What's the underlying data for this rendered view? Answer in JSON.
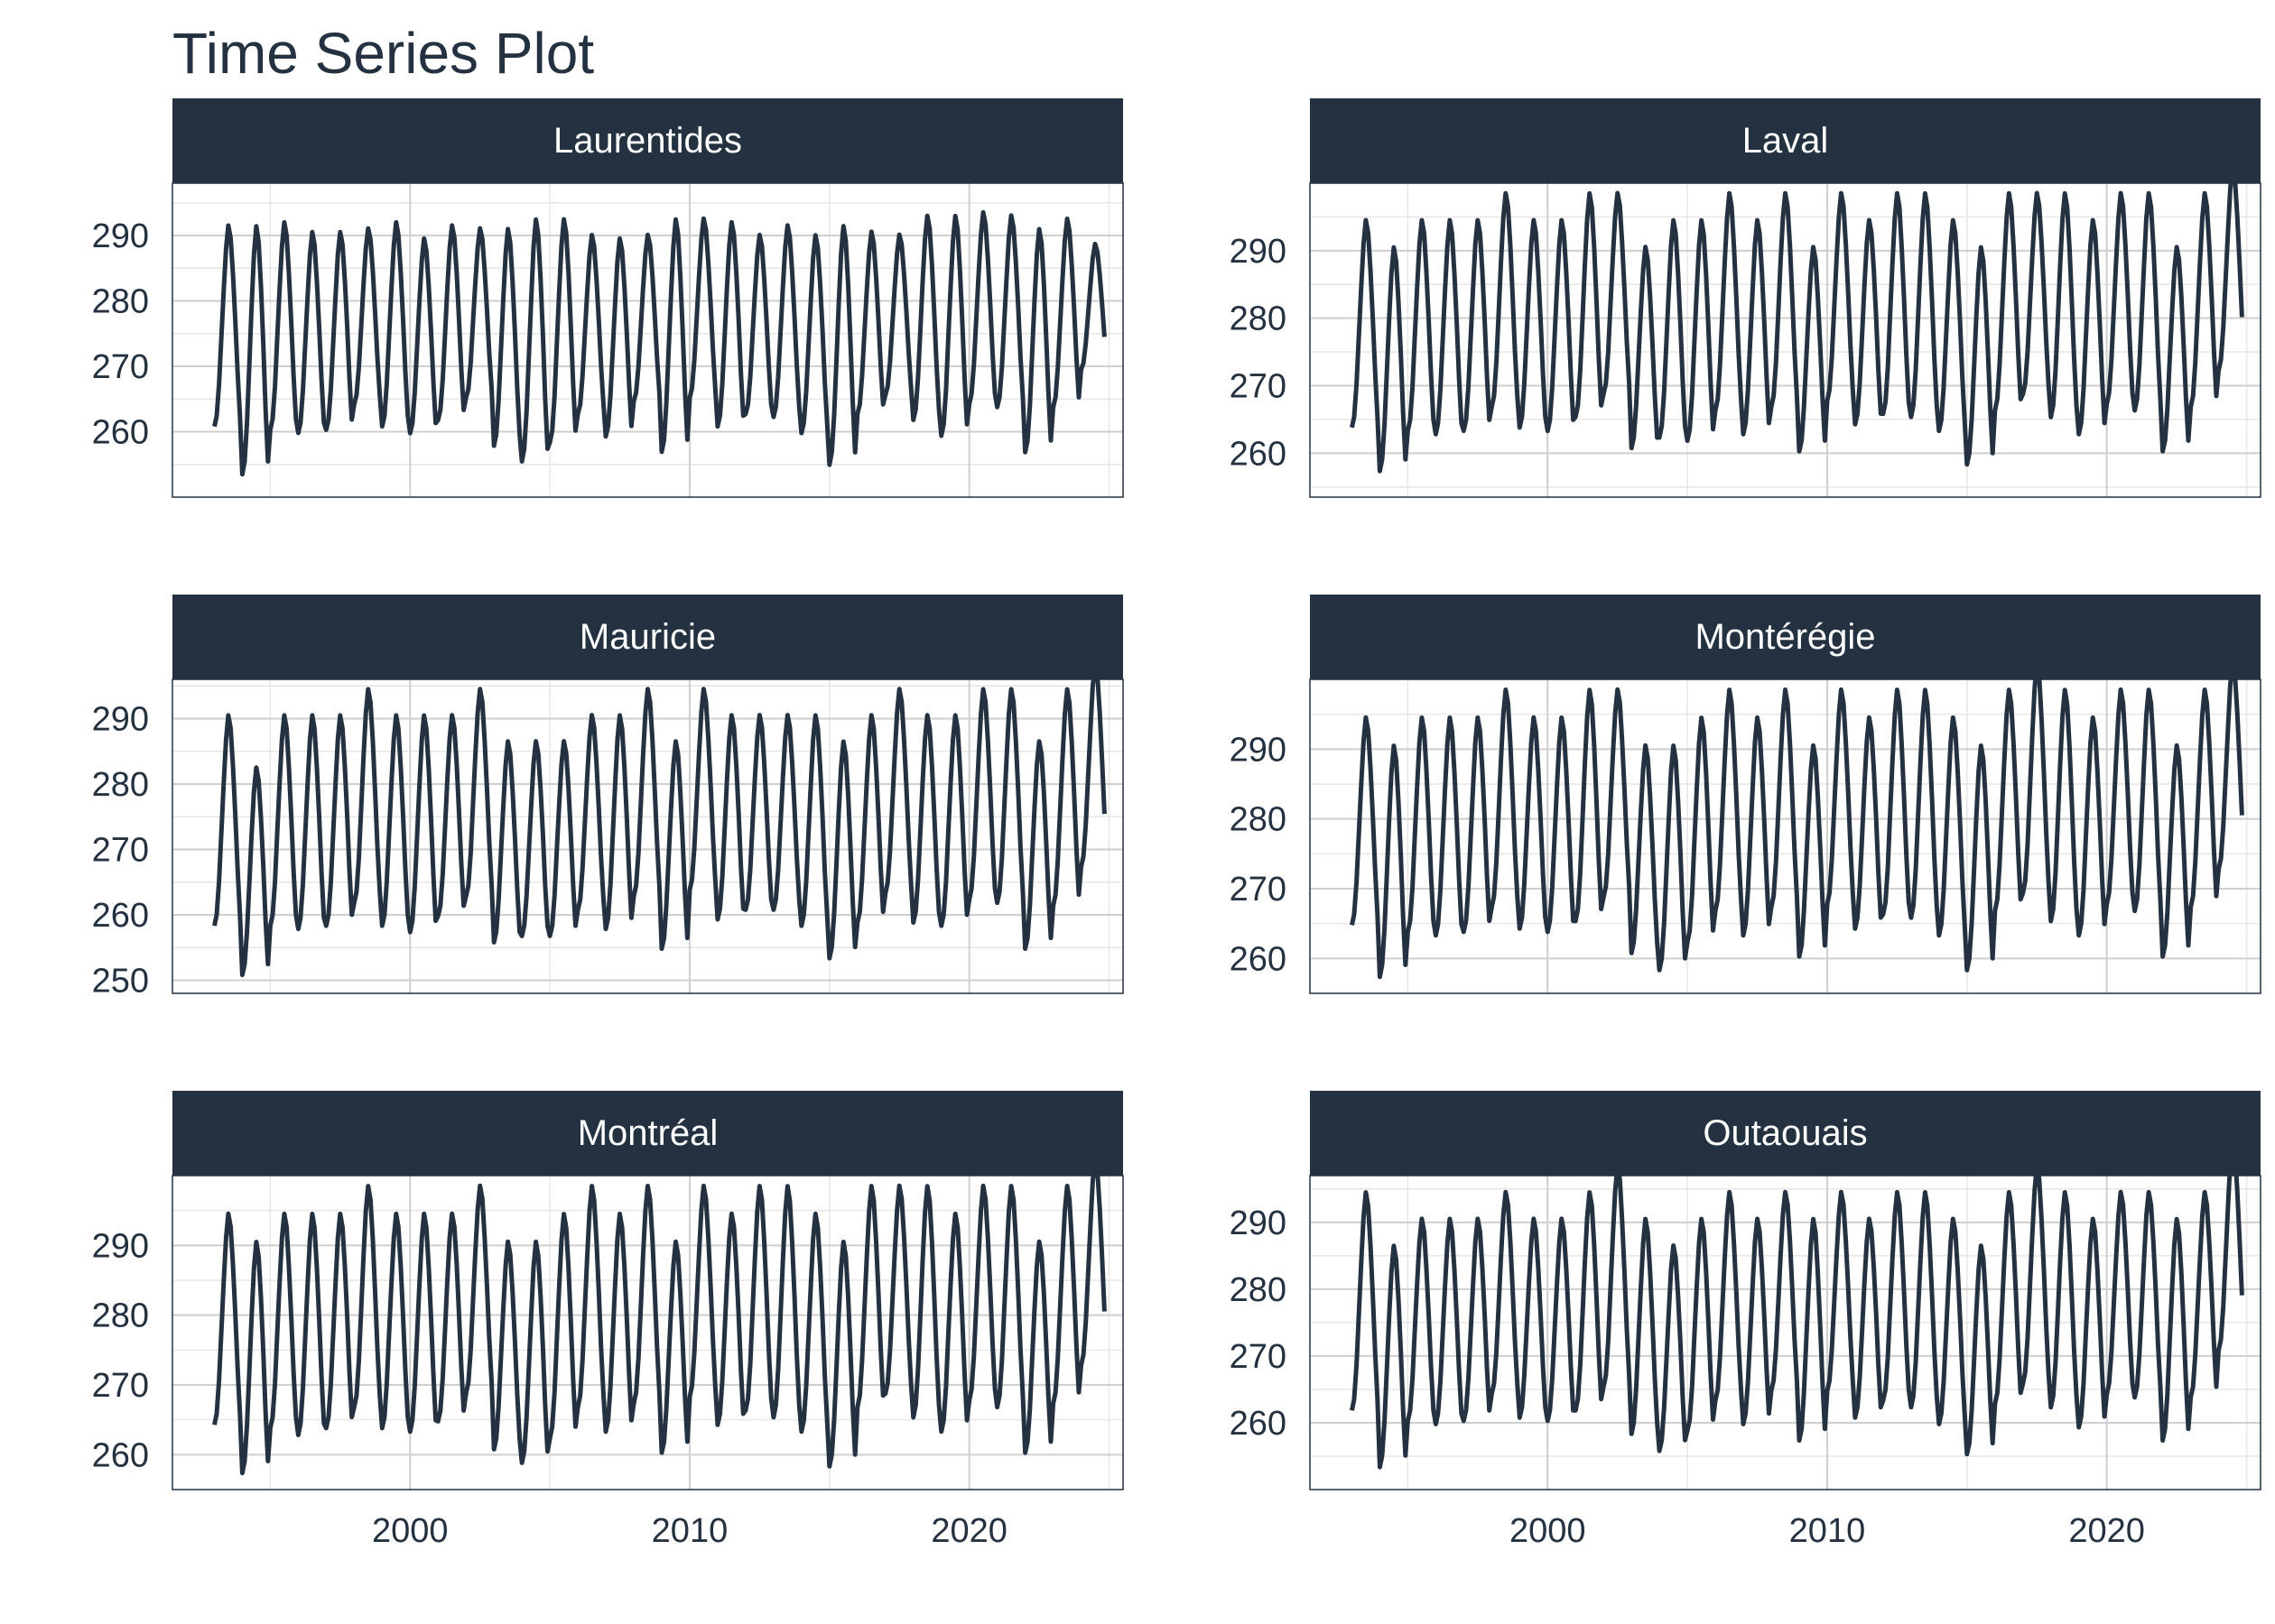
{
  "title": "Time Series Plot",
  "colors": {
    "line": "#233140",
    "strip": "#233140",
    "strip_text": "#ffffff",
    "grid_major": "#cfcfcf",
    "grid_minor": "#e6e6e6",
    "border": "#233140"
  },
  "chart_data": [
    {
      "type": "line",
      "title": "Laurentides",
      "x_range": [
        1993,
        2024
      ],
      "xlim": [
        1991.5,
        2025.5
      ],
      "ylim": [
        250,
        298
      ],
      "y_ticks": [
        260,
        270,
        280,
        290
      ],
      "x_ticks": [
        2000,
        2010,
        2020
      ],
      "series": [
        {
          "name": "Laurentides",
          "winter_low": [
            260,
            252.5,
            259.5,
            259,
            259.5,
            263.5,
            260,
            259,
            261,
            264.5,
            257,
            254.5,
            257.5,
            262,
            258.5,
            264,
            256,
            264.5,
            260,
            262,
            261.5,
            259,
            254,
            262,
            265,
            261,
            258.5,
            263.5,
            263,
            256,
            263,
            269
          ],
          "summer_high": [
            292,
            292,
            292.5,
            291,
            291,
            291.5,
            292.5,
            290,
            292,
            291.5,
            291.5,
            293,
            293,
            290.5,
            290,
            290.5,
            293,
            293,
            292.5,
            290.5,
            292,
            290.5,
            292,
            291,
            290.5,
            293.5,
            293.5,
            294,
            293.5,
            291.5,
            293,
            289
          ]
        }
      ]
    },
    {
      "type": "line",
      "title": "Laval",
      "x_range": [
        1993,
        2024
      ],
      "xlim": [
        1991.5,
        2025.5
      ],
      "ylim": [
        253.5,
        300
      ],
      "y_ticks": [
        260,
        270,
        280,
        290
      ],
      "x_ticks": [
        2000,
        2010,
        2020
      ],
      "series": [
        {
          "name": "Laval",
          "winter_low": [
            263,
            256.5,
            262.5,
            262,
            262.5,
            266,
            263,
            262.5,
            264.5,
            268,
            260,
            261.5,
            261,
            265.5,
            262,
            266,
            259.5,
            267,
            263.5,
            265,
            264.5,
            262.5,
            257.5,
            265.5,
            268,
            264.5,
            262,
            266.5,
            265.5,
            259.5,
            266,
            271.5
          ]
        }
      ],
      "summer_high_note": "peaks ~294-297"
    },
    {
      "type": "line",
      "title": "Mauricie",
      "x_range": [
        1993,
        2024
      ],
      "xlim": [
        1991.5,
        2025.5
      ],
      "ylim": [
        248,
        296
      ],
      "y_ticks": [
        250,
        260,
        270,
        280,
        290
      ],
      "x_ticks": [
        2000,
        2010,
        2020
      ],
      "series": [
        {
          "name": "Mauricie",
          "winter_low": [
            257.5,
            250,
            257.5,
            257,
            257.5,
            261,
            257.5,
            256.5,
            259,
            262,
            255,
            256,
            256,
            260,
            257,
            262,
            254,
            263,
            258.5,
            260,
            260,
            257.5,
            252.5,
            258,
            262.5,
            258,
            257.5,
            261.5,
            261,
            254,
            260.5,
            266.5
          ]
        }
      ]
    },
    {
      "type": "line",
      "title": "Montérégie",
      "x_range": [
        1993,
        2024
      ],
      "xlim": [
        1991.5,
        2025.5
      ],
      "ylim": [
        255,
        300
      ],
      "y_ticks": [
        260,
        270,
        280,
        290
      ],
      "x_ticks": [
        2000,
        2010,
        2020
      ],
      "series": [
        {
          "name": "Montérégie",
          "winter_low": [
            264,
            256.5,
            263,
            262.5,
            263,
            266.5,
            263.5,
            263,
            264.5,
            268,
            260,
            257.5,
            261.5,
            266,
            262.5,
            266.5,
            259.5,
            267,
            263.5,
            265.5,
            265,
            262.5,
            257.5,
            266,
            268.5,
            264.5,
            262.5,
            267,
            266,
            259.5,
            266.5,
            272
          ]
        }
      ]
    },
    {
      "type": "line",
      "title": "Montréal",
      "x_range": [
        1993,
        2024
      ],
      "xlim": [
        1991.5,
        2025.5
      ],
      "ylim": [
        255,
        300
      ],
      "y_ticks": [
        260,
        270,
        280,
        290
      ],
      "x_ticks": [
        2000,
        2010,
        2020
      ],
      "series": [
        {
          "name": "Montréal",
          "winter_low": [
            263.5,
            256.5,
            263,
            262,
            263,
            266,
            263,
            262.5,
            264,
            268,
            260,
            258,
            261.5,
            266,
            262.5,
            266.5,
            259.5,
            267.5,
            263.5,
            265.5,
            264.5,
            262.5,
            257.5,
            266,
            268,
            264.5,
            262.5,
            267,
            266,
            259.5,
            266.5,
            272
          ]
        }
      ]
    },
    {
      "type": "line",
      "title": "Outaouais",
      "x_range": [
        1993,
        2024
      ],
      "xlim": [
        1991.5,
        2025.5
      ],
      "ylim": [
        250,
        297
      ],
      "y_ticks": [
        260,
        270,
        280,
        290
      ],
      "x_ticks": [
        2000,
        2010,
        2020
      ],
      "series": [
        {
          "name": "Outaouais",
          "winter_low": [
            261,
            252.5,
            259.5,
            259,
            259.5,
            263.5,
            260,
            259.5,
            261,
            264.5,
            257.5,
            255,
            258,
            262.5,
            259,
            264,
            256.5,
            264,
            260,
            262.5,
            261.5,
            259,
            254.5,
            262,
            265,
            261.5,
            258.5,
            263.5,
            263,
            256.5,
            263,
            270
          ]
        }
      ]
    }
  ]
}
